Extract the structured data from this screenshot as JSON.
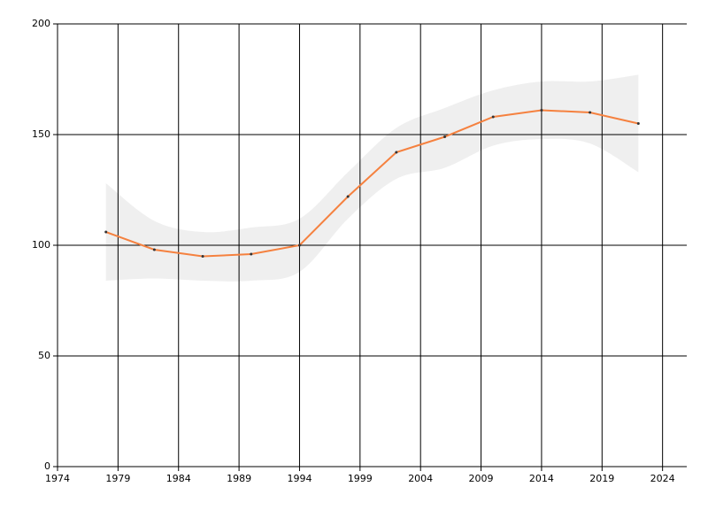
{
  "chart_data": {
    "type": "line",
    "x": [
      1978,
      1982,
      1986,
      1990,
      1994,
      1998,
      2002,
      2006,
      2010,
      2014,
      2018,
      2022
    ],
    "values": [
      106,
      98,
      95,
      96,
      100,
      122,
      142,
      149,
      158,
      161,
      160,
      155
    ],
    "color": "#f5813f",
    "marker_color": "#333333",
    "band": {
      "upper": [
        128,
        111,
        106,
        108,
        112,
        133,
        153,
        162,
        170,
        174,
        174,
        177
      ],
      "lower": [
        84,
        85,
        84,
        84,
        88,
        112,
        130,
        135,
        145,
        148,
        146,
        133
      ],
      "color": "#efefef"
    },
    "xlim": [
      1974,
      2026
    ],
    "xticks": [
      1974,
      1979,
      1984,
      1989,
      1994,
      1999,
      2004,
      2009,
      2014,
      2019,
      2024
    ],
    "ylim": [
      0,
      200
    ],
    "yticks": [
      0,
      50,
      100,
      150,
      200
    ],
    "grid": true
  }
}
